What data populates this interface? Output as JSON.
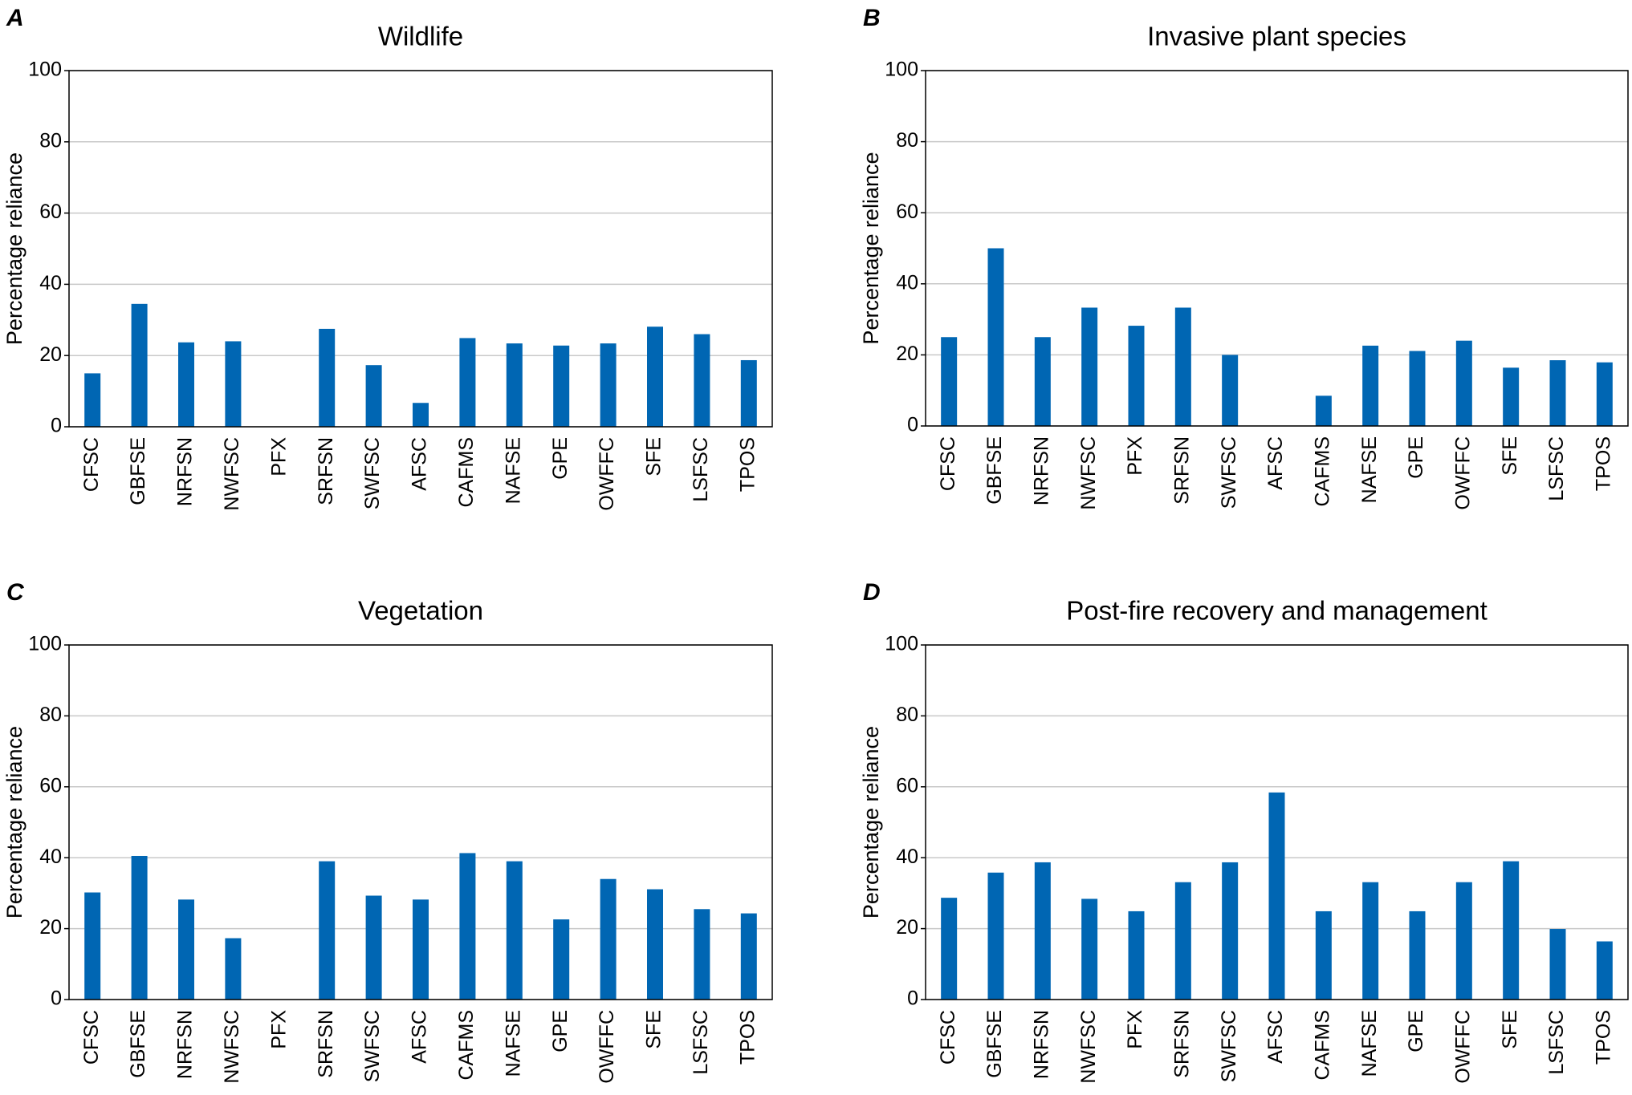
{
  "chart_data": [
    {
      "type": "bar",
      "panel": "A",
      "title": "Wildlife",
      "ylabel": "Percentage reliance",
      "categories": [
        "CFSC",
        "GBFSE",
        "NRFSN",
        "NWFSC",
        "PFX",
        "SRFSN",
        "SWFSC",
        "AFSC",
        "CAFMS",
        "NAFSE",
        "GPE",
        "OWFFC",
        "SFE",
        "LSFSC",
        "TPOS"
      ],
      "values": [
        15,
        34.5,
        23.7,
        24,
        0,
        27.5,
        17.3,
        6.7,
        24.9,
        23.4,
        22.8,
        23.4,
        28.1,
        26,
        18.7
      ],
      "color": "#0066b3",
      "ylim": [
        0,
        100
      ],
      "yticks": [
        0,
        20,
        40,
        60,
        80,
        100
      ],
      "grid": true
    },
    {
      "type": "bar",
      "panel": "B",
      "title": "Invasive plant species",
      "ylabel": "Percentage reliance",
      "categories": [
        "CFSC",
        "GBFSE",
        "NRFSN",
        "NWFSC",
        "PFX",
        "SRFSN",
        "SWFSC",
        "AFSC",
        "CAFMS",
        "NAFSE",
        "GPE",
        "OWFFC",
        "SFE",
        "LSFSC",
        "TPOS"
      ],
      "values": [
        25,
        50,
        25,
        33.3,
        28.2,
        33.3,
        20,
        0,
        8.5,
        22.6,
        21.1,
        24,
        16.4,
        18.5,
        17.9
      ],
      "color": "#0066b3",
      "ylim": [
        0,
        100
      ],
      "yticks": [
        0,
        20,
        40,
        60,
        80,
        100
      ],
      "grid": true
    },
    {
      "type": "bar",
      "panel": "C",
      "title": "Vegetation",
      "ylabel": "Percentage reliance",
      "categories": [
        "CFSC",
        "GBFSE",
        "NRFSN",
        "NWFSC",
        "PFX",
        "SRFSN",
        "SWFSC",
        "AFSC",
        "CAFMS",
        "NAFSE",
        "GPE",
        "OWFFC",
        "SFE",
        "LSFSC",
        "TPOS"
      ],
      "values": [
        30.2,
        40.5,
        28.2,
        17.3,
        0,
        39,
        29.3,
        28.2,
        41.3,
        39,
        22.6,
        34,
        31.1,
        25.5,
        24.3
      ],
      "color": "#0066b3",
      "ylim": [
        0,
        100
      ],
      "yticks": [
        0,
        20,
        40,
        60,
        80,
        100
      ],
      "grid": true
    },
    {
      "type": "bar",
      "panel": "D",
      "title": "Post-fire recovery and management",
      "ylabel": "Percentage reliance",
      "categories": [
        "CFSC",
        "GBFSE",
        "NRFSN",
        "NWFSC",
        "PFX",
        "SRFSN",
        "SWFSC",
        "AFSC",
        "CAFMS",
        "NAFSE",
        "GPE",
        "OWFFC",
        "SFE",
        "LSFSC",
        "TPOS"
      ],
      "values": [
        28.7,
        35.8,
        38.7,
        28.4,
        24.9,
        33.1,
        38.7,
        58.4,
        24.9,
        33.1,
        24.9,
        33.1,
        39,
        19.9,
        16.4
      ],
      "color": "#0066b3",
      "ylim": [
        0,
        100
      ],
      "yticks": [
        0,
        20,
        40,
        60,
        80,
        100
      ],
      "grid": true
    }
  ]
}
